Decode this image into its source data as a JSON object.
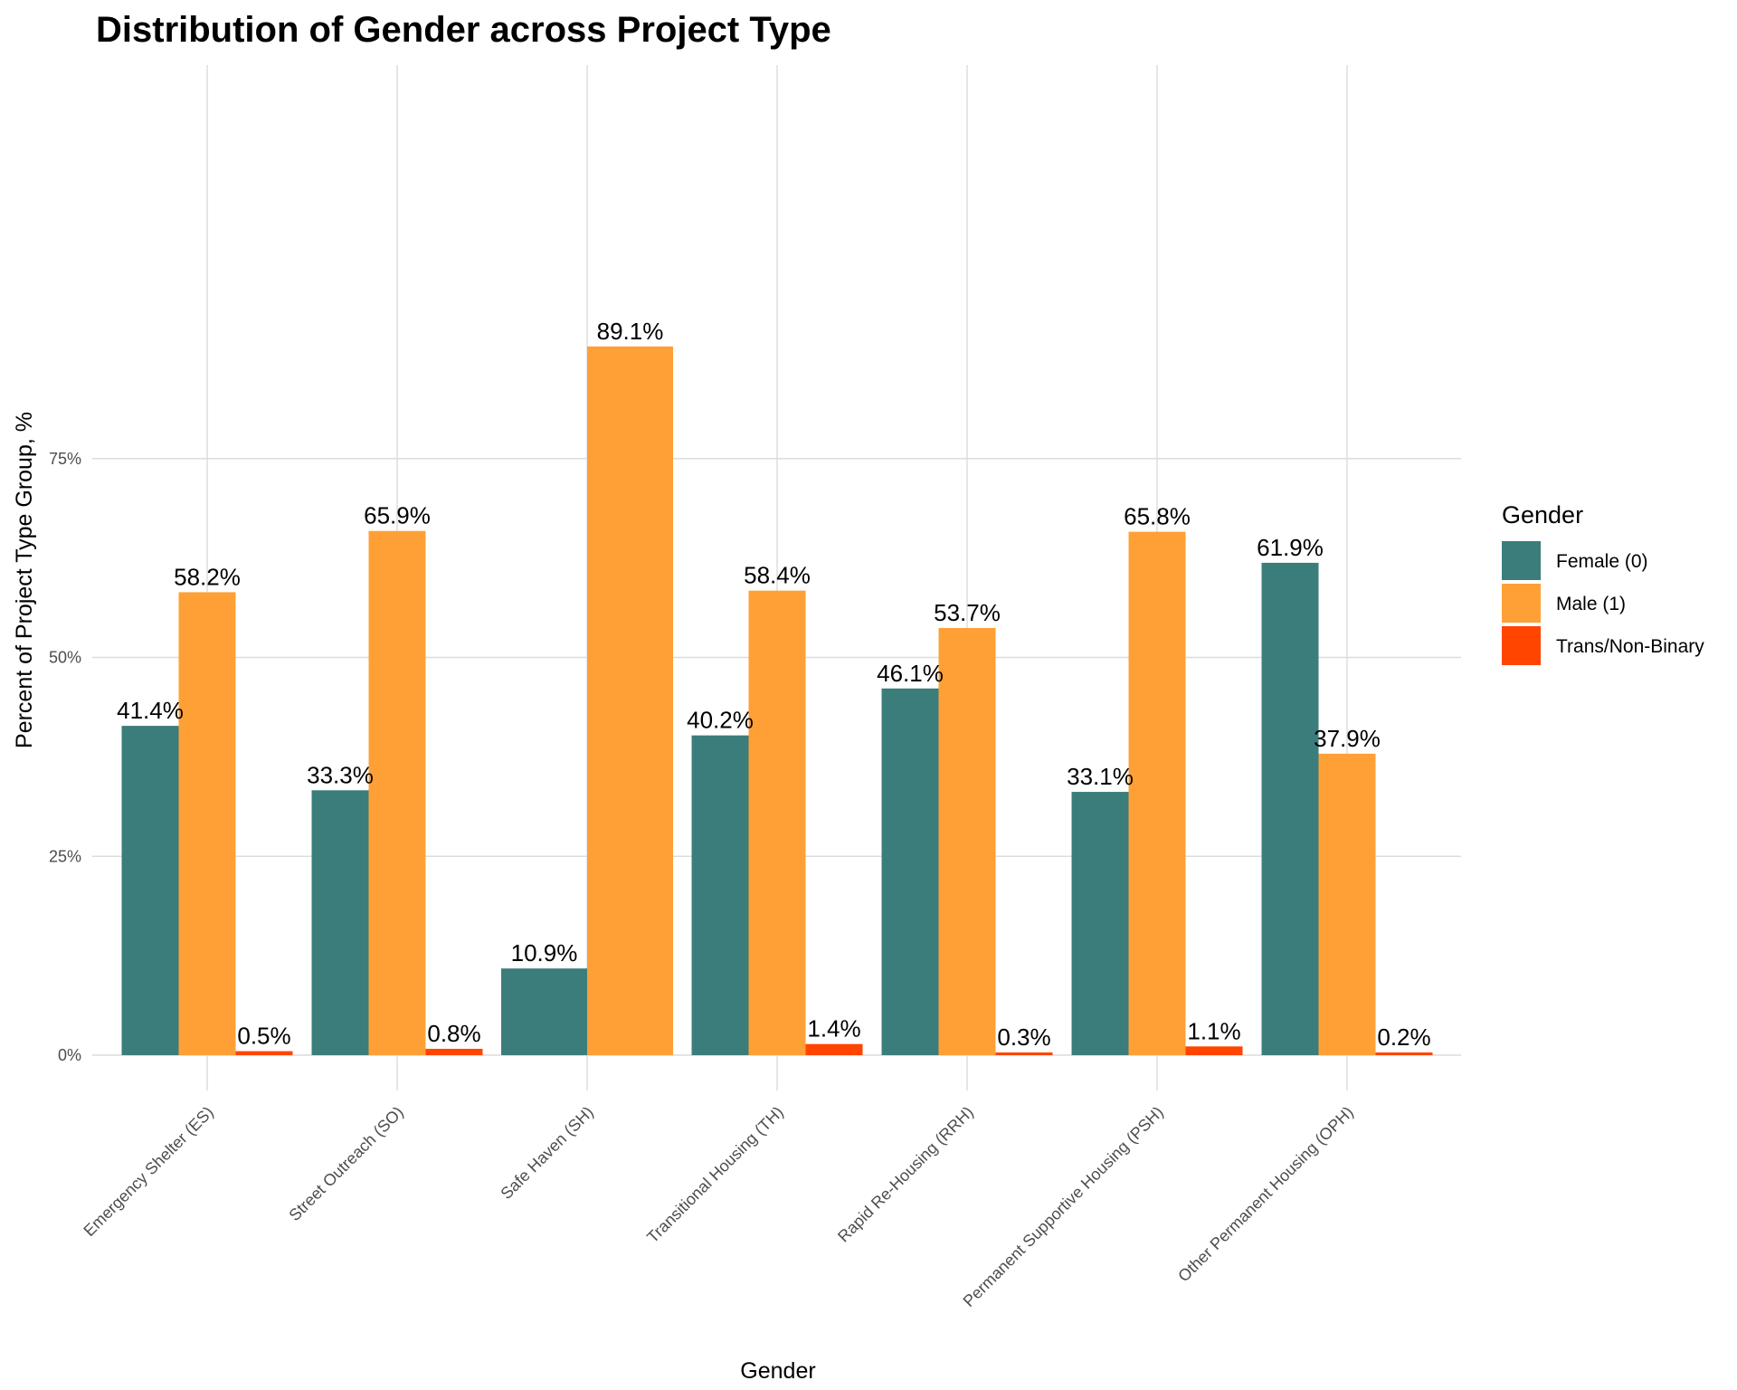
{
  "chart_data": {
    "type": "bar",
    "title": "Distribution of Gender across Project Type",
    "xlabel": "Gender",
    "ylabel": "Percent of Project Type Group, %",
    "ylim": [
      0,
      100
    ],
    "y_ticks": [
      {
        "value": 0,
        "label": "0%"
      },
      {
        "value": 25,
        "label": "25%"
      },
      {
        "value": 50,
        "label": "50%"
      },
      {
        "value": 75,
        "label": "75%"
      }
    ],
    "grid": true,
    "legend": {
      "title": "Gender",
      "position": "right"
    },
    "categories": [
      "Emergency Shelter (ES)",
      "Street Outreach (SO)",
      "Safe Haven (SH)",
      "Transitional Housing (TH)",
      "Rapid Re-Housing (RRH)",
      "Permanent Supportive Housing (PSH)",
      "Other Permanent Housing (OPH)"
    ],
    "series": [
      {
        "name": "Female (0)",
        "color": "#3B7D7B",
        "values": [
          41.4,
          33.3,
          10.9,
          40.2,
          46.1,
          33.1,
          61.9
        ],
        "labels": [
          "41.4%",
          "33.3%",
          "10.9%",
          "40.2%",
          "46.1%",
          "33.1%",
          "61.9%"
        ]
      },
      {
        "name": "Male (1)",
        "color": "#FFA037",
        "values": [
          58.2,
          65.9,
          89.1,
          58.4,
          53.7,
          65.8,
          37.9
        ],
        "labels": [
          "58.2%",
          "65.9%",
          "89.1%",
          "58.4%",
          "53.7%",
          "65.8%",
          "37.9%"
        ]
      },
      {
        "name": "Trans/Non-Binary",
        "color": "#FF4500",
        "values": [
          0.5,
          0.8,
          null,
          1.4,
          0.3,
          1.1,
          0.2
        ],
        "labels": [
          "0.5%",
          "0.8%",
          null,
          "1.4%",
          "0.3%",
          "1.1%",
          "0.2%"
        ]
      }
    ]
  }
}
